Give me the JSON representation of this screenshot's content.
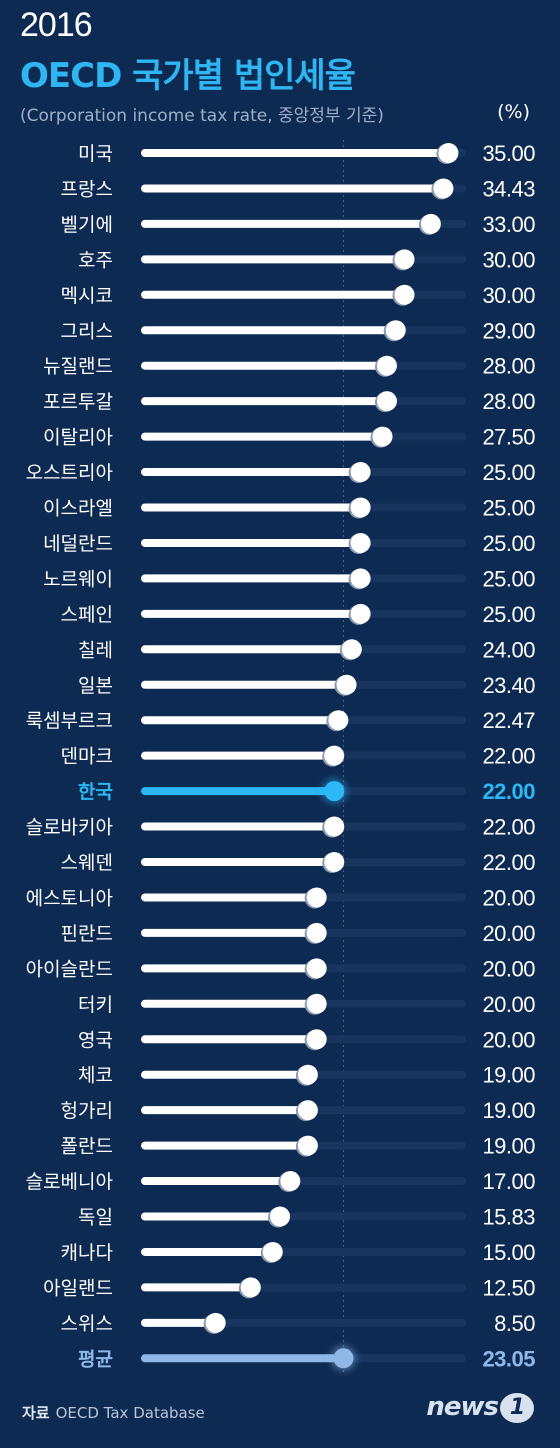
{
  "title_year": "2016",
  "title_main": "OECD 국가별 법인세율",
  "subtitle": "(Corporation income tax rate, 중앙정부 기준)",
  "unit": "(%)",
  "source_label": "자료",
  "source_text": "OECD Tax Database",
  "logo_text": "news",
  "logo_mark": "1",
  "colors": {
    "background": "#0d2a52",
    "track": "#17355f",
    "bar": "#ffffff",
    "korea": "#2bb8f4",
    "average": "#8fb8e8"
  },
  "chart_data": {
    "type": "bar",
    "orientation": "horizontal",
    "xlim": [
      0,
      37
    ],
    "categories": [
      "미국",
      "프랑스",
      "벨기에",
      "호주",
      "멕시코",
      "그리스",
      "뉴질랜드",
      "포르투갈",
      "이탈리아",
      "오스트리아",
      "이스라엘",
      "네덜란드",
      "노르웨이",
      "스페인",
      "칠레",
      "일본",
      "룩셈부르크",
      "덴마크",
      "한국",
      "슬로바키아",
      "스웨덴",
      "에스토니아",
      "핀란드",
      "아이슬란드",
      "터키",
      "영국",
      "체코",
      "헝가리",
      "폴란드",
      "슬로베니아",
      "독일",
      "캐나다",
      "아일랜드",
      "스위스",
      "평균"
    ],
    "values": [
      35.0,
      34.43,
      33.0,
      30.0,
      30.0,
      29.0,
      28.0,
      28.0,
      27.5,
      25.0,
      25.0,
      25.0,
      25.0,
      25.0,
      24.0,
      23.4,
      22.47,
      22.0,
      22.0,
      22.0,
      22.0,
      20.0,
      20.0,
      20.0,
      20.0,
      20.0,
      19.0,
      19.0,
      19.0,
      17.0,
      15.83,
      15.0,
      12.5,
      8.5,
      23.05
    ],
    "labels": [
      "35.00",
      "34.43",
      "33.00",
      "30.00",
      "30.00",
      "29.00",
      "28.00",
      "28.00",
      "27.50",
      "25.00",
      "25.00",
      "25.00",
      "25.00",
      "25.00",
      "24.00",
      "23.40",
      "22.47",
      "22.00",
      "22.00",
      "22.00",
      "22.00",
      "20.00",
      "20.00",
      "20.00",
      "20.00",
      "20.00",
      "19.00",
      "19.00",
      "19.00",
      "17.00",
      "15.83",
      "15.00",
      "12.50",
      "8.50",
      "23.05"
    ],
    "highlight": {
      "한국": "korea",
      "평균": "average"
    },
    "average_line": 23.05
  }
}
